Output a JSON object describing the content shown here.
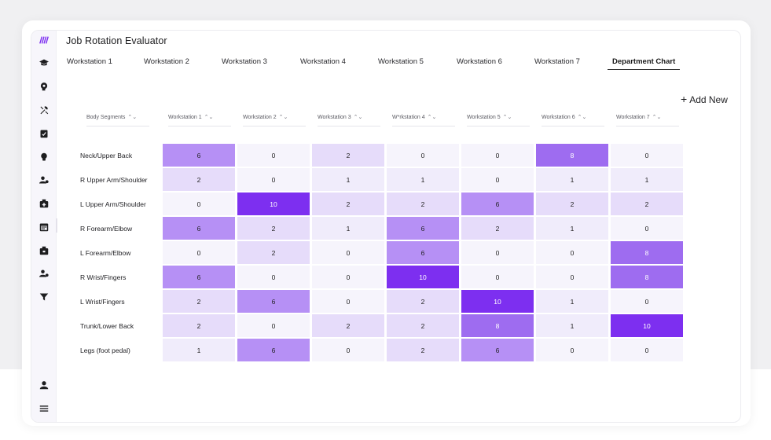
{
  "app": {
    "title": "Job Rotation Evaluator"
  },
  "sidebar": {
    "logo_icon": "brand-logo-icon",
    "items": [
      {
        "icon": "graduation-cap-icon"
      },
      {
        "icon": "brain-head-icon"
      },
      {
        "icon": "tools-icon"
      },
      {
        "icon": "clipboard-check-icon"
      },
      {
        "icon": "lightbulb-icon"
      },
      {
        "icon": "user-settings-icon"
      },
      {
        "icon": "first-aid-kit-icon"
      },
      {
        "icon": "calendar-icon"
      },
      {
        "icon": "briefcase-icon"
      },
      {
        "icon": "user-gear-icon"
      },
      {
        "icon": "filter-icon"
      }
    ],
    "bottom_items": [
      {
        "icon": "user-icon"
      },
      {
        "icon": "menu-icon"
      }
    ]
  },
  "tabs": [
    {
      "label": "Workstation 1"
    },
    {
      "label": "Workstation 2"
    },
    {
      "label": "Workstation 3"
    },
    {
      "label": "Workstation 4"
    },
    {
      "label": "Workstation 5"
    },
    {
      "label": "Workstation 6"
    },
    {
      "label": "Workstation 7"
    },
    {
      "label": "Department Chart",
      "active": true
    }
  ],
  "actions": {
    "add_new_label": "Add New"
  },
  "table": {
    "sort_glyph": "⌃⌄",
    "headers": [
      "Body Segments",
      "Workstation 1",
      "Workstation 2",
      "Workstation 3",
      "W*rkstation 4",
      "Workstation 5",
      "Workstation 6",
      "Workstation 7"
    ],
    "rows": [
      {
        "segment": "Neck/Upper Back",
        "values": [
          6,
          0,
          2,
          0,
          0,
          8,
          0
        ]
      },
      {
        "segment": "R Upper Arm/Shoulder",
        "values": [
          2,
          0,
          1,
          1,
          0,
          1,
          1
        ]
      },
      {
        "segment": "L Upper Arm/Shoulder",
        "values": [
          0,
          10,
          2,
          2,
          6,
          2,
          2
        ]
      },
      {
        "segment": "R Forearm/Elbow",
        "values": [
          6,
          2,
          1,
          6,
          2,
          1,
          0
        ]
      },
      {
        "segment": "L Forearm/Elbow",
        "values": [
          0,
          2,
          0,
          6,
          0,
          0,
          8
        ]
      },
      {
        "segment": "R Wrist/Fingers",
        "values": [
          6,
          0,
          0,
          10,
          0,
          0,
          8
        ]
      },
      {
        "segment": "L Wrist/Fingers",
        "values": [
          2,
          6,
          0,
          2,
          10,
          1,
          0
        ]
      },
      {
        "segment": "Trunk/Lower Back",
        "values": [
          2,
          0,
          2,
          2,
          8,
          1,
          10
        ]
      },
      {
        "segment": "Legs (foot pedal)",
        "values": [
          1,
          6,
          0,
          2,
          6,
          0,
          0
        ]
      }
    ]
  },
  "colors": {
    "level_0": "#f6f4fc",
    "level_1": "#f0ecfb",
    "level_2": "#e6dcfa",
    "level_6": "#b690f5",
    "level_8": "#9e6cf0",
    "level_10": "#7d2ff0",
    "text_dark": "#1f1f1f",
    "text_light": "#ffffff"
  }
}
